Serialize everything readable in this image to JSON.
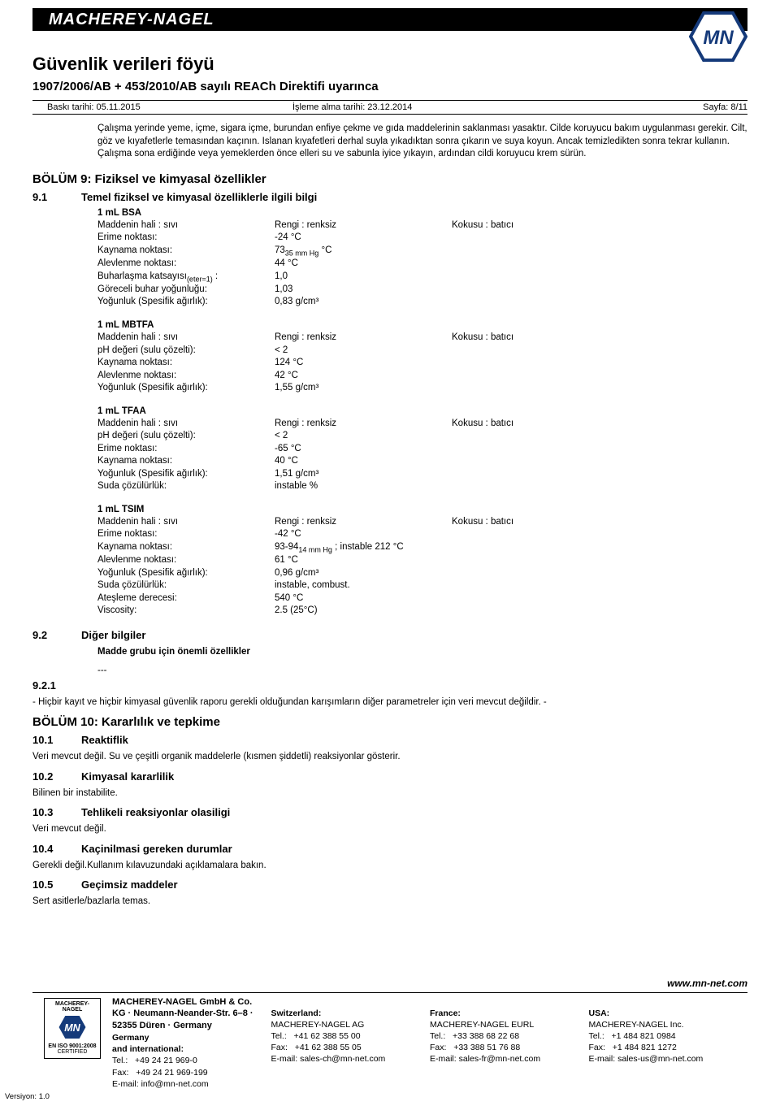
{
  "banner": {
    "brand": "MACHEREY-NAGEL",
    "logo_text": "MN"
  },
  "doc": {
    "title": "Güvenlik verileri föyü",
    "subtitle": "1907/2006/AB + 453/2010/AB sayılı REACh Direktifi uyarınca",
    "print_date": "Baskı tarihi: 05.11.2015",
    "process_date": "İşleme alma tarihi: 23.12.2014",
    "page": "Sayfa: 8/11"
  },
  "intro_text": "Çalışma yerinde yeme, içme, sigara içme, burundan enfiye çekme ve gıda maddelerinin saklanması yasaktır. Cilde koruyucu bakım uygulanması gerekir. Cilt, göz ve kıyafetlerle temasından kaçının. Islanan kıyafetleri derhal suyla yıkadıktan sonra çıkarın ve suya koyun. Ancak temizledikten sonra tekrar kullanın. Çalışma sona erdiğinde veya yemeklerden önce elleri su ve sabunla iyice yıkayın, ardından cildi koruyucu krem sürün.",
  "section9": {
    "title": "BÖLÜM 9: Fiziksel ve kimyasal özellikler",
    "s91_num": "9.1",
    "s91_title": "Temel fiziksel ve kimyasal özelliklerle ilgili bilgi"
  },
  "blocks": {
    "bsa": {
      "title": "1 mL BSA",
      "state_label": "Maddenin hali : sıvı",
      "color": "Rengi : renksiz",
      "odor": "Kokusu : batıcı",
      "melt_l": "Erime noktası:",
      "melt_v": "-24 °C",
      "boil_l": "Kaynama noktası:",
      "boil_v_a": "73",
      "boil_v_sub": "35 mm Hg",
      "boil_v_b": " °C",
      "flash_l": "Alevlenme noktası:",
      "flash_v": "44 °C",
      "evap_l_a": "Buharlaşma katsayısı",
      "evap_l_sub": "(eter=1)",
      "evap_l_b": " :",
      "evap_v": "1,0",
      "reldens_l": "Göreceli buhar yoğunluğu:",
      "reldens_v": "1,03",
      "dens_l": "Yoğunluk (Spesifik ağırlık):",
      "dens_v": "0,83 g/cm³"
    },
    "mbtfa": {
      "title": "1 mL MBTFA",
      "state_label": "Maddenin hali : sıvı",
      "color": "Rengi : renksiz",
      "odor": "Kokusu : batıcı",
      "ph_l": "pH değeri (sulu çözelti):",
      "ph_v": "< 2",
      "boil_l": "Kaynama noktası:",
      "boil_v": "124 °C",
      "flash_l": "Alevlenme noktası:",
      "flash_v": "42 °C",
      "dens_l": "Yoğunluk (Spesifik ağırlık):",
      "dens_v": "1,55 g/cm³"
    },
    "tfaa": {
      "title": "1 mL TFAA",
      "state_label": "Maddenin hali : sıvı",
      "color": "Rengi : renksiz",
      "odor": "Kokusu : batıcı",
      "ph_l": "pH değeri (sulu çözelti):",
      "ph_v": "< 2",
      "melt_l": "Erime noktası:",
      "melt_v": "-65 °C",
      "boil_l": "Kaynama noktası:",
      "boil_v": "40 °C",
      "dens_l": "Yoğunluk (Spesifik ağırlık):",
      "dens_v": "1,51 g/cm³",
      "sol_l": "Suda çözülürlük:",
      "sol_v": "instable %"
    },
    "tsim": {
      "title": "1 mL TSIM",
      "state_label": "Maddenin hali : sıvı",
      "color": "Rengi : renksiz",
      "odor": "Kokusu : batıcı",
      "melt_l": "Erime noktası:",
      "melt_v": "-42 °C",
      "boil_l": "Kaynama noktası:",
      "boil_v_a": "93-94",
      "boil_v_sub": "14 mm Hg",
      "boil_v_b": " ; instable 212 °C",
      "flash_l": "Alevlenme noktası:",
      "flash_v": "61 °C",
      "dens_l": "Yoğunluk (Spesifik ağırlık):",
      "dens_v": "0,96 g/cm³",
      "sol_l": "Suda çözülürlük:",
      "sol_v": "instable, combust.",
      "ign_l": "Ateşleme derecesi:",
      "ign_v": "540 °C",
      "visc_l": "Viscosity:",
      "visc_v": "2.5 (25°C)"
    }
  },
  "s92": {
    "num": "9.2",
    "title": "Diğer bilgiler",
    "line1": "Madde grubu için önemli özellikler",
    "line2": "---"
  },
  "s921": {
    "num": "9.2.1",
    "text": "- Hiçbir kayıt ve hiçbir kimyasal güvenlik raporu gerekli olduğundan karışımların diğer parametreler için veri mevcut değildir. -"
  },
  "section10": {
    "title": "BÖLÜM 10: Kararlılık ve tepkime",
    "items": [
      {
        "num": "10.1",
        "title": "Reaktiflik",
        "body": "Veri mevcut değil. Su ve çeşitli organik maddelerle (kısmen şiddetli) reaksiyonlar gösterir."
      },
      {
        "num": "10.2",
        "title": "Kimyasal kararlilik",
        "body": "Bilinen bir instabilite."
      },
      {
        "num": "10.3",
        "title": "Tehlikeli reaksiyonlar olasiligi",
        "body": "Veri mevcut değil."
      },
      {
        "num": "10.4",
        "title": "Kaçinilmasi gereken durumlar",
        "body": "Gerekli değil.Kullanım kılavuzundaki açıklamalara bakın."
      },
      {
        "num": "10.5",
        "title": "Geçimsiz maddeler",
        "body": "Sert asitlerle/bazlarla temas."
      }
    ]
  },
  "footer": {
    "url": "www.mn-net.com",
    "company_line": "MACHEREY-NAGEL GmbH & Co. KG · Neumann-Neander-Str. 6–8 · 52355 Düren · Germany",
    "cert_top": "MACHEREY-NAGEL",
    "cert_iso": "EN ISO 9001:2008",
    "cert_cert": "CERTIFIED",
    "de": {
      "h": "Germany",
      "h2": "and international:",
      "tel_l": "Tel.:",
      "tel_v": "+49 24 21 969-0",
      "fax_l": "Fax:",
      "fax_v": "+49 24 21 969-199",
      "email_l": "E-mail: info@mn-net.com"
    },
    "ch": {
      "h": "Switzerland:",
      "name": "MACHEREY-NAGEL AG",
      "tel_l": "Tel.:",
      "tel_v": "+41 62 388 55 00",
      "fax_l": "Fax:",
      "fax_v": "+41 62 388 55 05",
      "email_l": "E-mail: sales-ch@mn-net.com"
    },
    "fr": {
      "h": "France:",
      "name": "MACHEREY-NAGEL EURL",
      "tel_l": "Tel.:",
      "tel_v": "+33 388 68 22 68",
      "fax_l": "Fax:",
      "fax_v": "+33 388 51 76 88",
      "email_l": "E-mail: sales-fr@mn-net.com"
    },
    "us": {
      "h": "USA:",
      "name": "MACHEREY-NAGEL Inc.",
      "tel_l": "Tel.:",
      "tel_v": "+1 484 821 0984",
      "fax_l": "Fax:",
      "fax_v": "+1 484 821 1272",
      "email_l": "E-mail: sales-us@mn-net.com"
    }
  },
  "version": "Versiyon: 1.0"
}
